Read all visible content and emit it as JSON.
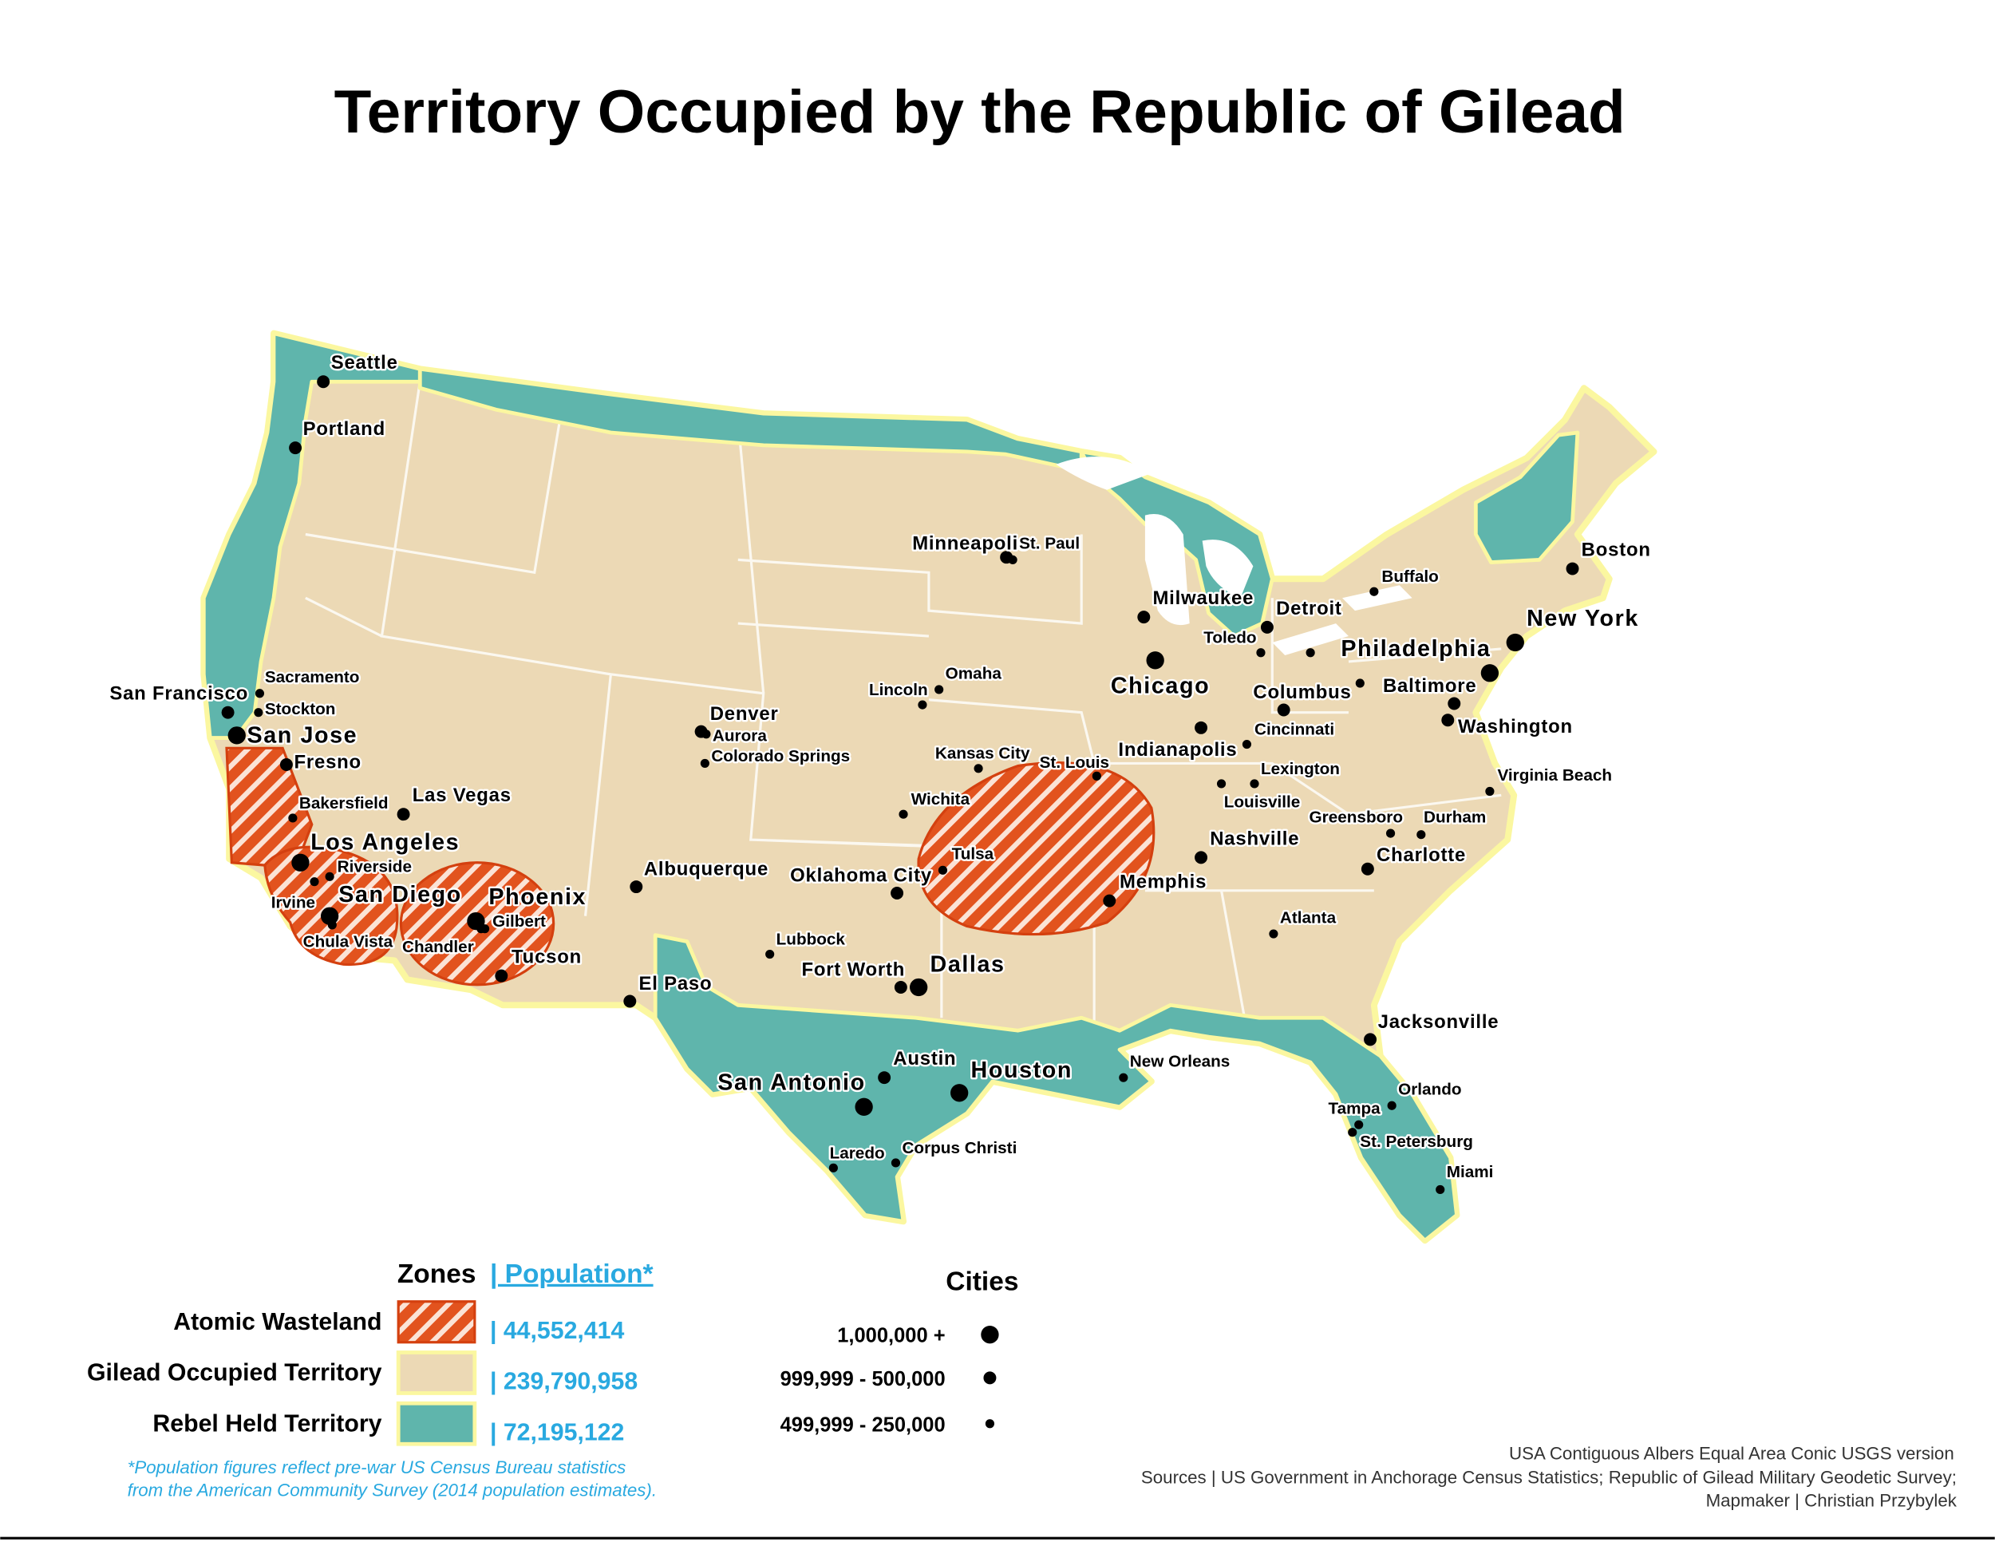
{
  "title": "Territory Occupied by the Republic of Gilead",
  "cities": [
    {
      "name": "Seattle",
      "tier": 1
    },
    {
      "name": "Portland",
      "tier": 1
    },
    {
      "name": "Minneapolis",
      "tier": 1
    },
    {
      "name": "St. Paul",
      "tier": 2
    },
    {
      "name": "Boston",
      "tier": 1
    },
    {
      "name": "Buffalo",
      "tier": 2
    },
    {
      "name": "Milwaukee",
      "tier": 1
    },
    {
      "name": "Detroit",
      "tier": 1
    },
    {
      "name": "Toledo",
      "tier": 2
    },
    {
      "name": null,
      "tier": 2
    },
    {
      "name": "New York",
      "tier": 0
    },
    {
      "name": "Philadelphia",
      "tier": 0
    },
    {
      "name": "Chicago",
      "tier": 0
    },
    {
      "name": "Columbus",
      "tier": 1
    },
    {
      "name": "Baltimore",
      "tier": 1
    },
    {
      "name": null,
      "tier": 2
    },
    {
      "name": "Washington",
      "tier": 1
    },
    {
      "name": "Omaha",
      "tier": 2
    },
    {
      "name": "Lincoln",
      "tier": 2
    },
    {
      "name": "Denver",
      "tier": 1
    },
    {
      "name": "Aurora",
      "tier": 2
    },
    {
      "name": "Colorado Springs",
      "tier": 2
    },
    {
      "name": "San Francisco",
      "tier": 1
    },
    {
      "name": "Sacramento",
      "tier": 2
    },
    {
      "name": "Stockton",
      "tier": 2
    },
    {
      "name": "San Jose",
      "tier": 0
    },
    {
      "name": "Fresno",
      "tier": 1
    },
    {
      "name": "Indianapolis",
      "tier": 1
    },
    {
      "name": "Cincinnati",
      "tier": 2
    },
    {
      "name": "Kansas City",
      "tier": 2
    },
    {
      "name": "St. Louis",
      "tier": 2
    },
    {
      "name": "Lexington",
      "tier": 2
    },
    {
      "name": "Louisville",
      "tier": 2
    },
    {
      "name": "Virginia Beach",
      "tier": 2
    },
    {
      "name": "Wichita",
      "tier": 2
    },
    {
      "name": "Las Vegas",
      "tier": 1
    },
    {
      "name": "Bakersfield",
      "tier": 2
    },
    {
      "name": "Greensboro",
      "tier": 2
    },
    {
      "name": "Durham",
      "tier": 2
    },
    {
      "name": "Nashville",
      "tier": 1
    },
    {
      "name": "Los Angeles",
      "tier": 0
    },
    {
      "name": "Charlotte",
      "tier": 1
    },
    {
      "name": "Tulsa",
      "tier": 2
    },
    {
      "name": "Riverside",
      "tier": 2
    },
    {
      "name": "Albuquerque",
      "tier": 1
    },
    {
      "name": "Oklahoma City",
      "tier": 1
    },
    {
      "name": "Memphis",
      "tier": 1
    },
    {
      "name": "Irvine",
      "tier": 2
    },
    {
      "name": "San Diego",
      "tier": 0
    },
    {
      "name": "Phoenix",
      "tier": 0
    },
    {
      "name": "Gilbert",
      "tier": 2
    },
    {
      "name": "Atlanta",
      "tier": 2
    },
    {
      "name": "Chula Vista",
      "tier": 2
    },
    {
      "name": "Chandler",
      "tier": 2
    },
    {
      "name": "Lubbock",
      "tier": 2
    },
    {
      "name": "Tucson",
      "tier": 1
    },
    {
      "name": "Fort Worth",
      "tier": 1
    },
    {
      "name": "Dallas",
      "tier": 0
    },
    {
      "name": "El Paso",
      "tier": 1
    },
    {
      "name": "Jacksonville",
      "tier": 1
    },
    {
      "name": "Austin",
      "tier": 1
    },
    {
      "name": "New Orleans",
      "tier": 2
    },
    {
      "name": "Houston",
      "tier": 0
    },
    {
      "name": "San Antonio",
      "tier": 0
    },
    {
      "name": "Orlando",
      "tier": 2
    },
    {
      "name": "Tampa",
      "tier": 2
    },
    {
      "name": "St. Petersburg",
      "tier": 2
    },
    {
      "name": "Laredo",
      "tier": 2
    },
    {
      "name": "Corpus Christi",
      "tier": 2
    },
    {
      "name": "Miami",
      "tier": 2
    }
  ],
  "legend": {
    "zones_heading": "Zones",
    "population_heading": "| Population*",
    "zones": [
      {
        "label": "Atomic Wasteland",
        "population": "| 44,552,414"
      },
      {
        "label": "Gilead Occupied Territory",
        "population": "| 239,790,958"
      },
      {
        "label": "Rebel Held Territory",
        "population": "| 72,195,122"
      }
    ],
    "cities_heading": "Cities",
    "city_tiers": [
      "1,000,000 +",
      "999,999 - 500,000",
      "499,999 - 250,000"
    ]
  },
  "note": [
    "*Population figures reflect pre-war US Census Bureau statistics",
    "from the American Community Survey (2014 population estimates)."
  ],
  "sources": [
    "USA Contiguous Albers Equal Area Conic USGS version",
    "Sources | US Government in Anchorage Census Statistics; Republic of Gilead Military Geodetic Survey;",
    "Mapmaker | Christian Przybylek"
  ]
}
